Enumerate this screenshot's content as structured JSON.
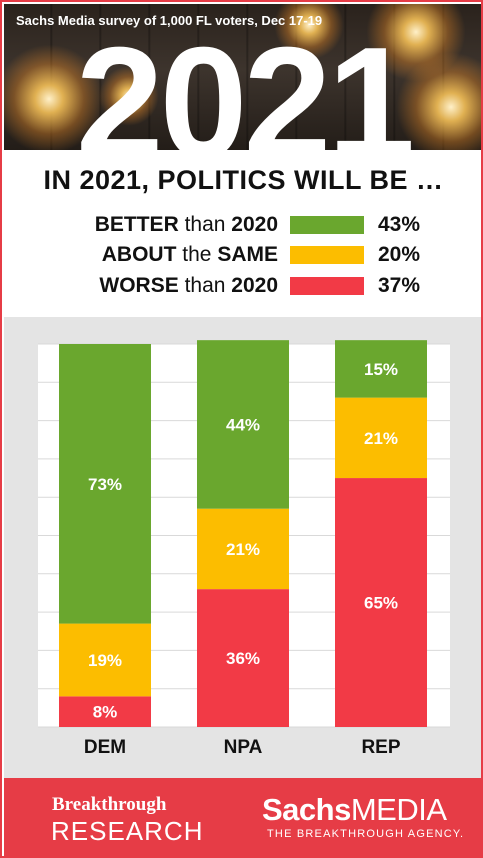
{
  "banner": {
    "caption": "Sachs Media survey of 1,000 FL voters, Dec 17-19",
    "year": "2021"
  },
  "headline": "IN 2021, POLITICS WILL BE …",
  "legend": [
    {
      "bold1": "BETTER",
      "mid": " than ",
      "bold2": "2020",
      "value": "43%",
      "color": "#6aa72e"
    },
    {
      "bold1": "ABOUT",
      "mid": " the ",
      "bold2": "SAME",
      "value": "20%",
      "color": "#fcbd00"
    },
    {
      "bold1": "WORSE",
      "mid": " than ",
      "bold2": "2020",
      "value": "37%",
      "color": "#f23a46"
    }
  ],
  "chart_data": {
    "type": "bar",
    "stacked": true,
    "categories": [
      "DEM",
      "NPA",
      "REP"
    ],
    "series": [
      {
        "name": "WORSE than 2020",
        "color": "#f23a46",
        "values": [
          8,
          36,
          65
        ],
        "labels": [
          "8%",
          "36%",
          "65%"
        ]
      },
      {
        "name": "ABOUT the SAME",
        "color": "#fcbd00",
        "values": [
          19,
          21,
          21
        ],
        "labels": [
          "19%",
          "21%",
          "21%"
        ]
      },
      {
        "name": "BETTER than 2020",
        "color": "#6aa72e",
        "values": [
          73,
          44,
          15
        ],
        "labels": [
          "73%",
          "44%",
          "15%"
        ]
      }
    ],
    "ylim": [
      0,
      100
    ],
    "grid": true,
    "legend_position": "top"
  },
  "footer": {
    "left_line1": "Breakthrough",
    "left_line2": "RESEARCH",
    "right_bold": "Sachs",
    "right_rest": "MEDIA",
    "tagline": "THE BREAKTHROUGH AGENCY."
  }
}
